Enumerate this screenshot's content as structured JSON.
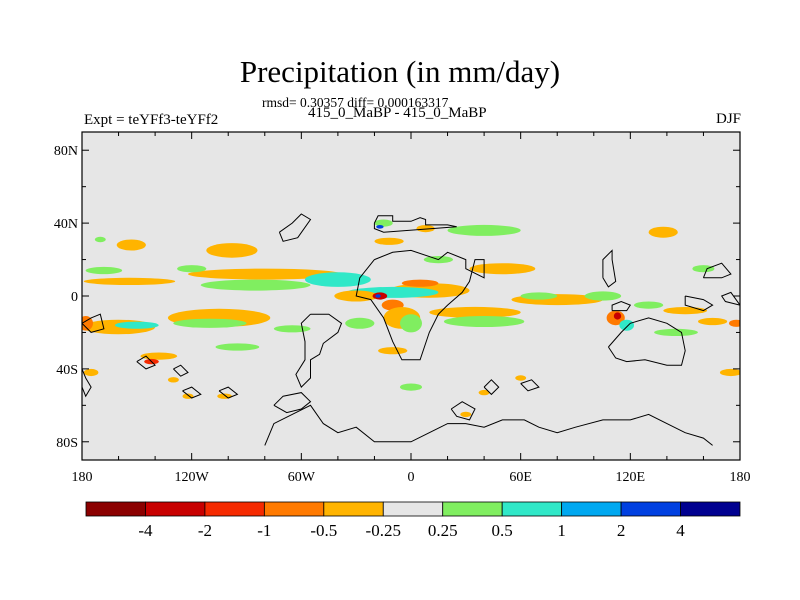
{
  "chart_data": {
    "type": "heatmap",
    "title": "Precipitation (in mm/day)",
    "stats": "rmsd= 0.30357 diff= 0.000163317",
    "subtitle_center": "415_0_MaBP - 415_0_MaBP",
    "subtitle_left": "Expt = teYFf3-teYFf2",
    "subtitle_right": "DJF",
    "x_ticks": [
      "180",
      "120W",
      "60W",
      "0",
      "60E",
      "120E",
      "180"
    ],
    "x_values": [
      -180,
      -120,
      -60,
      0,
      60,
      120,
      180
    ],
    "y_ticks": [
      "80N",
      "40N",
      "0",
      "40S",
      "80S"
    ],
    "y_values": [
      80,
      40,
      0,
      -40,
      -80
    ],
    "xlim": [
      -180,
      180
    ],
    "ylim": [
      -90,
      90
    ],
    "colorbar": {
      "levels": [
        "-4",
        "-2",
        "-1",
        "-0.5",
        "-0.25",
        "0.25",
        "0.5",
        "1",
        "2",
        "4"
      ],
      "colors": [
        "#8b0000",
        "#c80000",
        "#f52a00",
        "#ff7a00",
        "#ffb400",
        "#e6e6e6",
        "#80ee60",
        "#30e8c8",
        "#00a8f0",
        "#0040e0",
        "#000090"
      ]
    },
    "background_color": "#e6e6e6",
    "anomaly_regions": [
      {
        "lon": -153,
        "lat": 28,
        "rx": 8,
        "ry": 3,
        "c": 4
      },
      {
        "lon": -98,
        "lat": 25,
        "rx": 14,
        "ry": 4,
        "c": 4
      },
      {
        "lon": -170,
        "lat": 31,
        "rx": 3,
        "ry": 1.5,
        "c": 6
      },
      {
        "lon": -154,
        "lat": 8,
        "rx": 25,
        "ry": 2,
        "c": 4
      },
      {
        "lon": -80,
        "lat": 12,
        "rx": 42,
        "ry": 3,
        "c": 4
      },
      {
        "lon": -85,
        "lat": 6,
        "rx": 30,
        "ry": 3,
        "c": 6
      },
      {
        "lon": -40,
        "lat": 9,
        "rx": 18,
        "ry": 4,
        "c": 7
      },
      {
        "lon": -168,
        "lat": 14,
        "rx": 10,
        "ry": 2,
        "c": 6
      },
      {
        "lon": -120,
        "lat": 15,
        "rx": 8,
        "ry": 2,
        "c": 6
      },
      {
        "lon": -160,
        "lat": -17,
        "rx": 20,
        "ry": 4,
        "c": 4
      },
      {
        "lon": -150,
        "lat": -16,
        "rx": 12,
        "ry": 2,
        "c": 7
      },
      {
        "lon": -105,
        "lat": -12,
        "rx": 28,
        "ry": 5,
        "c": 4
      },
      {
        "lon": -110,
        "lat": -15,
        "rx": 20,
        "ry": 2.5,
        "c": 6
      },
      {
        "lon": -178,
        "lat": -15,
        "rx": 4,
        "ry": 4,
        "c": 3
      },
      {
        "lon": -138,
        "lat": -33,
        "rx": 10,
        "ry": 2,
        "c": 4
      },
      {
        "lon": -142,
        "lat": -36,
        "rx": 4,
        "ry": 1.5,
        "c": 2
      },
      {
        "lon": -95,
        "lat": -28,
        "rx": 12,
        "ry": 2,
        "c": 6
      },
      {
        "lon": -65,
        "lat": -18,
        "rx": 10,
        "ry": 2,
        "c": 6
      },
      {
        "lon": -122,
        "lat": -55,
        "rx": 3,
        "ry": 1.5,
        "c": 4
      },
      {
        "lon": -102,
        "lat": -55,
        "rx": 4,
        "ry": 1.5,
        "c": 4
      },
      {
        "lon": -130,
        "lat": -46,
        "rx": 3,
        "ry": 1.5,
        "c": 4
      },
      {
        "lon": -15,
        "lat": 40,
        "rx": 5,
        "ry": 2,
        "c": 6
      },
      {
        "lon": -17,
        "lat": 38,
        "rx": 2,
        "ry": 1,
        "c": 9
      },
      {
        "lon": 8,
        "lat": 37,
        "rx": 5,
        "ry": 2,
        "c": 4
      },
      {
        "lon": 40,
        "lat": 36,
        "rx": 20,
        "ry": 3,
        "c": 6
      },
      {
        "lon": 138,
        "lat": 35,
        "rx": 8,
        "ry": 3,
        "c": 4
      },
      {
        "lon": -12,
        "lat": 30,
        "rx": 8,
        "ry": 2,
        "c": 4
      },
      {
        "lon": 50,
        "lat": 15,
        "rx": 18,
        "ry": 3,
        "c": 4
      },
      {
        "lon": 15,
        "lat": 20,
        "rx": 8,
        "ry": 2,
        "c": 6
      },
      {
        "lon": 10,
        "lat": 3,
        "rx": 22,
        "ry": 4,
        "c": 4
      },
      {
        "lon": 5,
        "lat": 7,
        "rx": 10,
        "ry": 2,
        "c": 3
      },
      {
        "lon": -10,
        "lat": 2,
        "rx": 25,
        "ry": 3,
        "c": 7
      },
      {
        "lon": -30,
        "lat": 0,
        "rx": 12,
        "ry": 3,
        "c": 4
      },
      {
        "lon": -17,
        "lat": 0,
        "rx": 4,
        "ry": 2,
        "c": 1
      },
      {
        "lon": -18,
        "lat": 0,
        "rx": 1.5,
        "ry": 1,
        "c": 9
      },
      {
        "lon": -10,
        "lat": -5,
        "rx": 6,
        "ry": 3,
        "c": 3
      },
      {
        "lon": -5,
        "lat": -12,
        "rx": 10,
        "ry": 6,
        "c": 4
      },
      {
        "lon": 0,
        "lat": -15,
        "rx": 6,
        "ry": 5,
        "c": 6
      },
      {
        "lon": -28,
        "lat": -15,
        "rx": 8,
        "ry": 3,
        "c": 6
      },
      {
        "lon": 35,
        "lat": -9,
        "rx": 25,
        "ry": 3,
        "c": 4
      },
      {
        "lon": 40,
        "lat": -14,
        "rx": 22,
        "ry": 3,
        "c": 6
      },
      {
        "lon": -10,
        "lat": -30,
        "rx": 8,
        "ry": 2,
        "c": 4
      },
      {
        "lon": 0,
        "lat": -50,
        "rx": 6,
        "ry": 2,
        "c": 6
      },
      {
        "lon": 60,
        "lat": -45,
        "rx": 3,
        "ry": 1.5,
        "c": 4
      },
      {
        "lon": 40,
        "lat": -53,
        "rx": 3,
        "ry": 1.5,
        "c": 4
      },
      {
        "lon": 30,
        "lat": -65,
        "rx": 3,
        "ry": 1.5,
        "c": 4
      },
      {
        "lon": 80,
        "lat": -2,
        "rx": 25,
        "ry": 3,
        "c": 4
      },
      {
        "lon": 70,
        "lat": 0,
        "rx": 10,
        "ry": 2,
        "c": 6
      },
      {
        "lon": 105,
        "lat": 0,
        "rx": 10,
        "ry": 2.5,
        "c": 6
      },
      {
        "lon": 112,
        "lat": -12,
        "rx": 5,
        "ry": 4,
        "c": 3
      },
      {
        "lon": 113,
        "lat": -11,
        "rx": 2,
        "ry": 2,
        "c": 1
      },
      {
        "lon": 118,
        "lat": -16,
        "rx": 4,
        "ry": 3,
        "c": 7
      },
      {
        "lon": 130,
        "lat": -5,
        "rx": 8,
        "ry": 2,
        "c": 6
      },
      {
        "lon": 150,
        "lat": -8,
        "rx": 12,
        "ry": 2,
        "c": 4
      },
      {
        "lon": 165,
        "lat": -14,
        "rx": 8,
        "ry": 2,
        "c": 4
      },
      {
        "lon": 178,
        "lat": -15,
        "rx": 4,
        "ry": 2,
        "c": 3
      },
      {
        "lon": 145,
        "lat": -20,
        "rx": 12,
        "ry": 2,
        "c": 6
      },
      {
        "lon": 175,
        "lat": -42,
        "rx": 6,
        "ry": 2,
        "c": 4
      },
      {
        "lon": 160,
        "lat": 15,
        "rx": 6,
        "ry": 2,
        "c": 6
      },
      {
        "lon": -175,
        "lat": -42,
        "rx": 4,
        "ry": 2,
        "c": 4
      }
    ],
    "coastlines": [
      [
        [
          -20,
          40
        ],
        [
          -18,
          44
        ],
        [
          -10,
          44
        ],
        [
          -10,
          41
        ],
        [
          0,
          41
        ],
        [
          5,
          43
        ],
        [
          8,
          42
        ],
        [
          8,
          39
        ],
        [
          20,
          39
        ],
        [
          25,
          38
        ],
        [
          -15,
          35
        ],
        [
          -20,
          37
        ],
        [
          -20,
          40
        ]
      ],
      [
        [
          -20,
          20
        ],
        [
          -10,
          24
        ],
        [
          0,
          25
        ],
        [
          15,
          20
        ],
        [
          20,
          24
        ],
        [
          30,
          20
        ],
        [
          30,
          15
        ],
        [
          40,
          10
        ],
        [
          40,
          20
        ],
        [
          35,
          20
        ],
        [
          32,
          8
        ],
        [
          28,
          2
        ],
        [
          20,
          -5
        ],
        [
          15,
          -10
        ],
        [
          10,
          -20
        ],
        [
          5,
          -35
        ],
        [
          -5,
          -35
        ],
        [
          -10,
          -25
        ],
        [
          -15,
          -12
        ],
        [
          -22,
          -2
        ],
        [
          -30,
          0
        ],
        [
          -28,
          10
        ],
        [
          -20,
          20
        ]
      ],
      [
        [
          -55,
          -10
        ],
        [
          -45,
          -10
        ],
        [
          -38,
          -15
        ],
        [
          -40,
          -20
        ],
        [
          -48,
          -26
        ],
        [
          -50,
          -32
        ],
        [
          -55,
          -35
        ],
        [
          -55,
          -45
        ],
        [
          -60,
          -50
        ],
        [
          -63,
          -43
        ],
        [
          -58,
          -35
        ],
        [
          -58,
          -25
        ],
        [
          -60,
          -15
        ],
        [
          -55,
          -10
        ]
      ],
      [
        [
          105,
          10
        ],
        [
          105,
          20
        ],
        [
          110,
          25
        ],
        [
          110,
          20
        ],
        [
          112,
          8
        ],
        [
          108,
          5
        ],
        [
          105,
          10
        ]
      ],
      [
        [
          108,
          -28
        ],
        [
          112,
          -34
        ],
        [
          118,
          -36
        ],
        [
          128,
          -35
        ],
        [
          140,
          -38
        ],
        [
          148,
          -38
        ],
        [
          150,
          -30
        ],
        [
          148,
          -20
        ],
        [
          140,
          -15
        ],
        [
          130,
          -12
        ],
        [
          120,
          -15
        ],
        [
          115,
          -20
        ],
        [
          108,
          -28
        ]
      ],
      [
        [
          110,
          -8
        ],
        [
          118,
          -8
        ],
        [
          120,
          -5
        ],
        [
          115,
          -3
        ],
        [
          110,
          -5
        ],
        [
          110,
          -8
        ]
      ],
      [
        [
          150,
          0
        ],
        [
          160,
          -2
        ],
        [
          165,
          -5
        ],
        [
          160,
          -8
        ],
        [
          150,
          -5
        ],
        [
          150,
          0
        ]
      ],
      [
        [
          160,
          10
        ],
        [
          162,
          15
        ],
        [
          170,
          18
        ],
        [
          175,
          12
        ],
        [
          170,
          10
        ],
        [
          160,
          10
        ]
      ],
      [
        [
          -180,
          -15
        ],
        [
          -175,
          -12
        ],
        [
          -170,
          -10
        ],
        [
          -168,
          -18
        ],
        [
          -175,
          -20
        ],
        [
          -180,
          -15
        ]
      ],
      [
        [
          -180,
          -40
        ],
        [
          -178,
          -45
        ],
        [
          -175,
          -50
        ],
        [
          -178,
          -55
        ],
        [
          -180,
          -50
        ]
      ],
      [
        [
          -150,
          -36
        ],
        [
          -145,
          -40
        ],
        [
          -140,
          -38
        ],
        [
          -145,
          -33
        ],
        [
          -150,
          -36
        ]
      ],
      [
        [
          -130,
          -40
        ],
        [
          -126,
          -44
        ],
        [
          -122,
          -42
        ],
        [
          -126,
          -38
        ],
        [
          -130,
          -40
        ]
      ],
      [
        [
          -105,
          -52
        ],
        [
          -100,
          -56
        ],
        [
          -95,
          -54
        ],
        [
          -100,
          -50
        ],
        [
          -105,
          -52
        ]
      ],
      [
        [
          -125,
          -52
        ],
        [
          -120,
          -56
        ],
        [
          -115,
          -54
        ],
        [
          -120,
          -50
        ],
        [
          -125,
          -52
        ]
      ],
      [
        [
          -75,
          -60
        ],
        [
          -70,
          -55
        ],
        [
          -60,
          -53
        ],
        [
          -55,
          -58
        ],
        [
          -60,
          -62
        ],
        [
          -68,
          -64
        ],
        [
          -75,
          -60
        ]
      ],
      [
        [
          -80,
          -82
        ],
        [
          -75,
          -70
        ],
        [
          -65,
          -65
        ],
        [
          -55,
          -60
        ],
        [
          -48,
          -70
        ],
        [
          -40,
          -75
        ],
        [
          -30,
          -72
        ],
        [
          -20,
          -80
        ],
        [
          0,
          -80
        ],
        [
          10,
          -75
        ],
        [
          20,
          -70
        ],
        [
          30,
          -70
        ],
        [
          40,
          -72
        ],
        [
          50,
          -68
        ],
        [
          62,
          -68
        ],
        [
          70,
          -72
        ],
        [
          80,
          -75
        ],
        [
          90,
          -72
        ],
        [
          105,
          -68
        ],
        [
          120,
          -68
        ],
        [
          130,
          -65
        ],
        [
          140,
          -70
        ],
        [
          150,
          -75
        ],
        [
          160,
          -78
        ],
        [
          165,
          -82
        ]
      ],
      [
        [
          22,
          -62
        ],
        [
          28,
          -58
        ],
        [
          35,
          -62
        ],
        [
          32,
          -68
        ],
        [
          25,
          -66
        ],
        [
          22,
          -62
        ]
      ],
      [
        [
          40,
          -50
        ],
        [
          44,
          -46
        ],
        [
          48,
          -50
        ],
        [
          44,
          -54
        ],
        [
          40,
          -50
        ]
      ],
      [
        [
          60,
          -48
        ],
        [
          64,
          -52
        ],
        [
          70,
          -50
        ],
        [
          66,
          -46
        ],
        [
          60,
          -48
        ]
      ],
      [
        [
          -72,
          35
        ],
        [
          -65,
          40
        ],
        [
          -60,
          45
        ],
        [
          -55,
          42
        ],
        [
          -62,
          32
        ],
        [
          -70,
          30
        ],
        [
          -72,
          35
        ]
      ],
      [
        [
          180,
          -5
        ],
        [
          172,
          -3
        ],
        [
          170,
          0
        ],
        [
          175,
          2
        ],
        [
          180,
          -5
        ]
      ]
    ]
  }
}
